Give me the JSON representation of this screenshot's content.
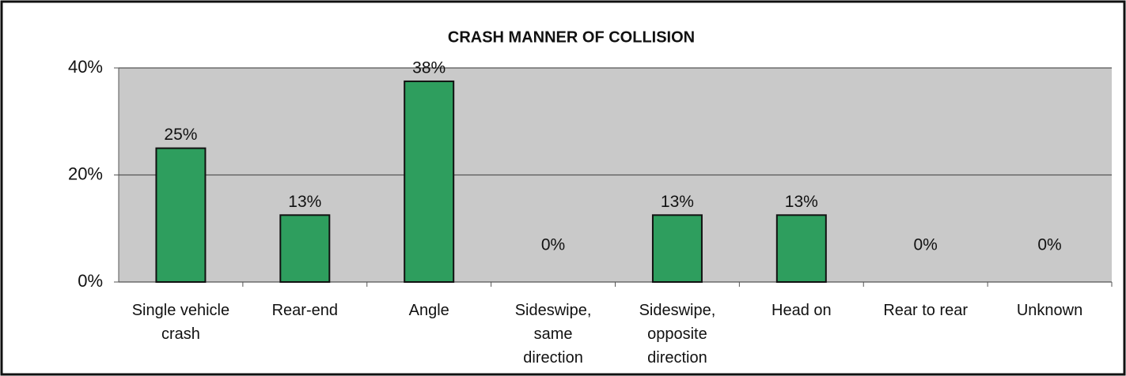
{
  "chart_data": {
    "type": "bar",
    "title": "CRASH MANNER OF COLLISION",
    "categories": [
      "Single vehicle crash",
      "Rear-end",
      "Angle",
      "Sideswipe, same direction",
      "Sideswipe, opposite direction",
      "Head on",
      "Rear to rear",
      "Unknown"
    ],
    "values": [
      25,
      12.5,
      37.5,
      0,
      12.5,
      12.5,
      0,
      0
    ],
    "value_labels": [
      "25%",
      "13%",
      "38%",
      "0%",
      "13%",
      "13%",
      "0%",
      "0%"
    ],
    "color": "#2e9e5e",
    "ylim": [
      0,
      40
    ],
    "yticks": [
      {
        "value": 0,
        "label": "0%"
      },
      {
        "value": 20,
        "label": "20%"
      },
      {
        "value": 40,
        "label": "40%"
      }
    ],
    "grid": true
  }
}
